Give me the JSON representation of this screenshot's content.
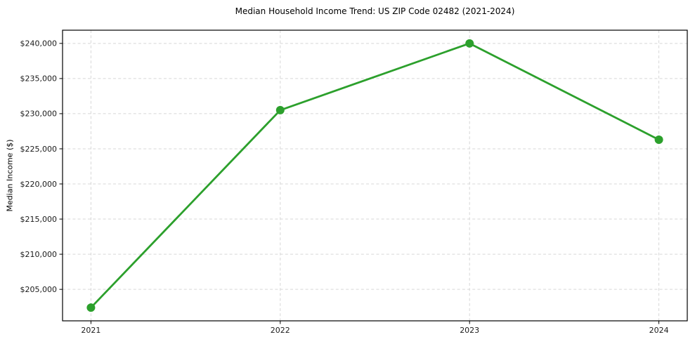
{
  "chart_data": {
    "type": "line",
    "title": "Median Household Income Trend: US ZIP Code 02482 (2021-2024)",
    "xlabel": "",
    "ylabel": "Median Income ($)",
    "x": [
      2021,
      2022,
      2023,
      2024
    ],
    "series": [
      {
        "name": "Median Household Income",
        "values": [
          202400,
          230500,
          240000,
          226300
        ]
      }
    ],
    "xticks": {
      "values": [
        2021,
        2022,
        2023,
        2024
      ],
      "labels": [
        "2021",
        "2022",
        "2023",
        "2024"
      ]
    },
    "yticks": {
      "values": [
        205000,
        210000,
        215000,
        220000,
        225000,
        230000,
        235000,
        240000
      ],
      "labels": [
        "$205,000",
        "$210,000",
        "$215,000",
        "$220,000",
        "$225,000",
        "$230,000",
        "$235,000",
        "$240,000"
      ]
    },
    "xlim": [
      2020.85,
      2024.15
    ],
    "ylim": [
      200520,
      241880
    ],
    "grid": true,
    "grid_style": "dashed",
    "legend": "none",
    "colors": {
      "line": "#2ca02c",
      "marker": "#2ca02c",
      "grid": "#d7d7d7",
      "spine": "#000000",
      "text": "#1a1a1a",
      "background": "#ffffff"
    }
  }
}
